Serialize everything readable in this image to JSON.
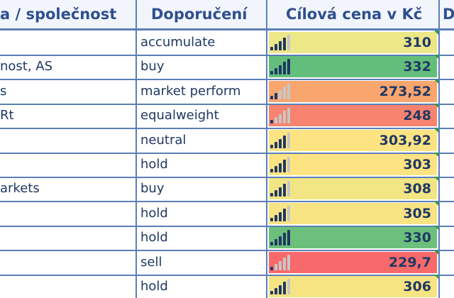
{
  "headers": {
    "company": "a / společnost",
    "recommendation": "Doporučení",
    "target_price": "Cílová cena v Kč",
    "next": "D"
  },
  "colors": {
    "yellow": "#f3e88a",
    "green": "#66bf7b",
    "light_green": "#c9dd86",
    "orange": "#f7a46e",
    "salmon": "#f7826e",
    "red": "#f26a69",
    "yellow_orange": "#fbe383"
  },
  "rows": [
    {
      "company": "",
      "recommendation": "accumulate",
      "price": "310",
      "signal": 4,
      "color": "#ece787"
    },
    {
      "company": "nost, AS",
      "recommendation": "buy",
      "price": "332",
      "signal": 5,
      "color": "#63be7b"
    },
    {
      "company": "s",
      "recommendation": "market perform",
      "price": "273,52",
      "signal": 2,
      "color": "#f9a56e"
    },
    {
      "company": "Rt",
      "recommendation": "equalweight",
      "price": "248",
      "signal": 1,
      "color": "#f8836f"
    },
    {
      "company": "",
      "recommendation": "neutral",
      "price": "303,92",
      "signal": 4,
      "color": "#fee382"
    },
    {
      "company": "",
      "recommendation": "hold",
      "price": "303",
      "signal": 4,
      "color": "#fee382"
    },
    {
      "company": "arkets",
      "recommendation": "buy",
      "price": "308",
      "signal": 4,
      "color": "#f2e584"
    },
    {
      "company": "",
      "recommendation": "hold",
      "price": "305",
      "signal": 4,
      "color": "#f9e483"
    },
    {
      "company": "",
      "recommendation": "hold",
      "price": "330",
      "signal": 5,
      "color": "#6cc07c"
    },
    {
      "company": "",
      "recommendation": "sell",
      "price": "229,7",
      "signal": 1,
      "color": "#f8696b"
    },
    {
      "company": "",
      "recommendation": "hold",
      "price": "306",
      "signal": 4,
      "color": "#f6e483"
    }
  ]
}
